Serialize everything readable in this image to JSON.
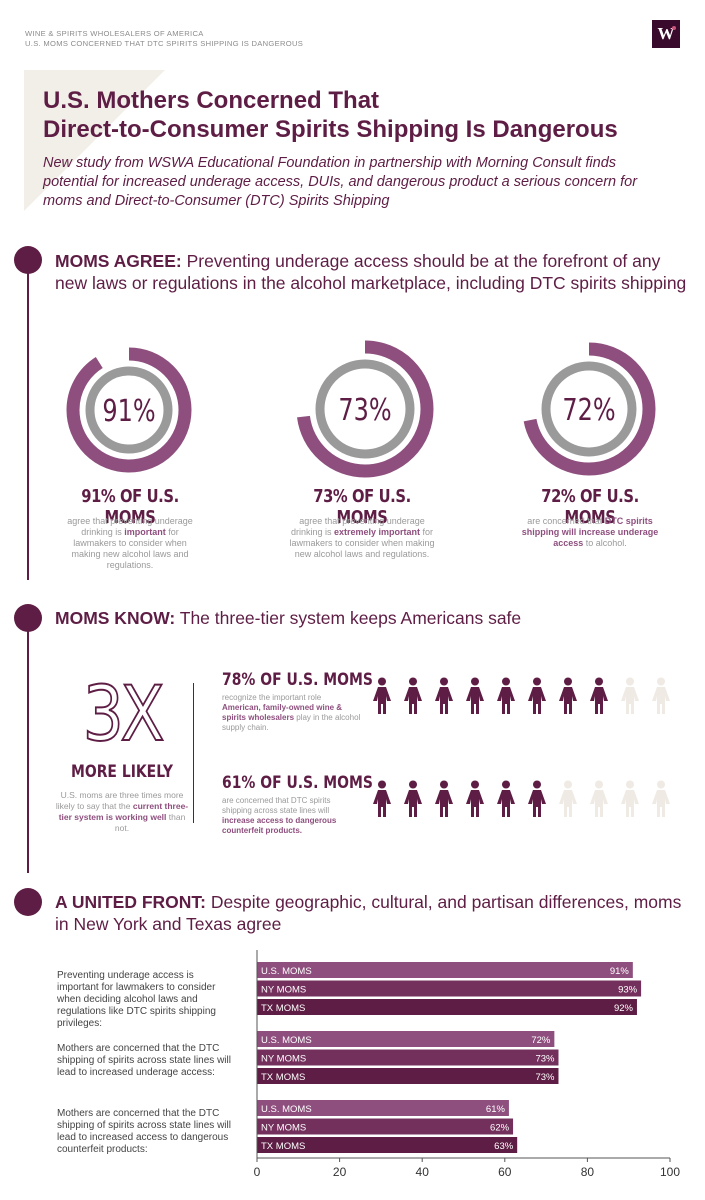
{
  "header": {
    "org_line": "WINE & SPIRITS WHOLESALERS OF AMERICA",
    "topic_line": "U.S. MOMS CONCERNED THAT DTC SPIRITS SHIPPING IS DANGEROUS",
    "logo_text": "W"
  },
  "title": {
    "line1": "U.S. Mothers Concerned That",
    "line2": "Direct-to-Consumer Spirits Shipping Is Dangerous"
  },
  "subtitle": "New study from WSWA Educational Foundation in partnership with Morning Consult finds potential for increased underage access, DUIs, and dangerous product a serious concern for moms and Direct-to-Consumer (DTC) Spirits Shipping",
  "section1": {
    "lead": "MOMS AGREE:",
    "rest": " Preventing underage access should be at the forefront of any new laws or regulations in the alcohol marketplace, including DTC spirits shipping",
    "donuts": [
      {
        "value": 91,
        "center_label": "91%",
        "label": "91% OF U.S. MOMS",
        "desc_pre": "agree that preventing underage drinking is ",
        "desc_em": "important",
        "desc_post": " for lawmakers to consider when making new alcohol laws and regulations."
      },
      {
        "value": 73,
        "center_label": "73%",
        "label": "73% OF U.S. MOMS",
        "desc_pre": "agree that preventing underage drinking is ",
        "desc_em": "extremely important",
        "desc_post": " for lawmakers to consider when making new alcohol laws and regulations."
      },
      {
        "value": 72,
        "center_label": "72%",
        "label": "72% OF U.S. MOMS",
        "desc_pre": "are concerned that ",
        "desc_em": "DTC spirits shipping will increase underage access",
        "desc_post": " to alcohol."
      }
    ]
  },
  "section2": {
    "lead": "MOMS KNOW:",
    "rest": " The three-tier system keeps Americans safe",
    "big": "3X",
    "more_likely": "MORE LIKELY",
    "left_desc_pre": "U.S. moms are three times more likely to say that the ",
    "left_desc_em": "current three-tier system is working well",
    "left_desc_post": " than not.",
    "stats": [
      {
        "label": "78% OF U.S. MOMS",
        "filled": 8,
        "total": 10,
        "desc_pre": "recognize the important role ",
        "desc_em": "American, family-owned wine & spirits wholesalers",
        "desc_post": " play in the alcohol supply chain."
      },
      {
        "label": "61% OF U.S. MOMS",
        "filled": 6,
        "total": 10,
        "desc_pre": "are concerned that DTC spirits shipping across state lines will ",
        "desc_em": "increase access to dangerous counterfeit products.",
        "desc_post": ""
      }
    ]
  },
  "section3": {
    "lead": "A UNITED FRONT:",
    "rest": " Despite geographic, cultural, and partisan differences, moms in New York and Texas agree"
  },
  "colors": {
    "primary": "#5e1d44",
    "accent": "#8e4f7e",
    "gray": "#9a9a9a",
    "light": "#f2efe9"
  },
  "chart_data": {
    "type": "bar",
    "orientation": "horizontal",
    "xlim": [
      0,
      100
    ],
    "xticks": [
      0,
      20,
      40,
      60,
      80,
      100
    ],
    "groups": [
      {
        "question": "Preventing underage access is important for lawmakers to consider when deciding alcohol laws and regulations like DTC spirits shipping privileges:",
        "bars": [
          {
            "name": "U.S. MOMS",
            "value": 91,
            "label": "91%"
          },
          {
            "name": "NY MOMS",
            "value": 93,
            "label": "93%"
          },
          {
            "name": "TX MOMS",
            "value": 92,
            "label": "92%"
          }
        ]
      },
      {
        "question": "Mothers are concerned that the DTC shipping of spirits across state lines will lead to increased underage access:",
        "bars": [
          {
            "name": "U.S. MOMS",
            "value": 72,
            "label": "72%"
          },
          {
            "name": "NY MOMS",
            "value": 73,
            "label": "73%"
          },
          {
            "name": "TX MOMS",
            "value": 73,
            "label": "73%"
          }
        ]
      },
      {
        "question": "Mothers are concerned that the DTC shipping of spirits across state lines will lead to increased access to dangerous counterfeit products:",
        "bars": [
          {
            "name": "U.S. MOMS",
            "value": 61,
            "label": "61%"
          },
          {
            "name": "NY MOMS",
            "value": 62,
            "label": "62%"
          },
          {
            "name": "TX MOMS",
            "value": 63,
            "label": "63%"
          }
        ]
      }
    ],
    "bar_colors": [
      "#8e4f7e",
      "#74305d",
      "#5e1d44"
    ]
  }
}
